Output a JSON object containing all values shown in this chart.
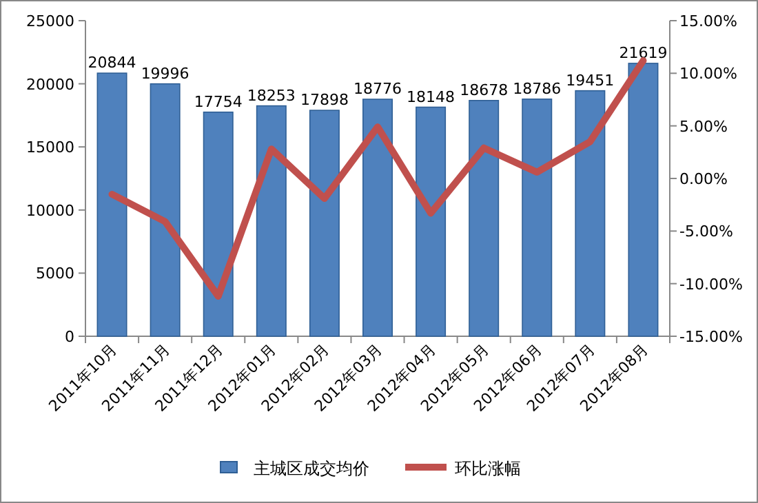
{
  "chart_data": {
    "type": "bar",
    "categories": [
      "2011年10月",
      "2011年11月",
      "2011年12月",
      "2012年01月",
      "2012年02月",
      "2012年03月",
      "2012年04月",
      "2012年05月",
      "2012年06月",
      "2012年07月",
      "2012年08月"
    ],
    "series": [
      {
        "name": "主城区成交均价",
        "color": "#4f81bd",
        "values": [
          20844,
          19996,
          17754,
          18253,
          17898,
          18776,
          18148,
          18678,
          18786,
          19451,
          21619
        ],
        "value_labels": [
          "20844",
          "19996",
          "17754",
          "18253",
          "17898",
          "18776",
          "18148",
          "18678",
          "18786",
          "19451",
          "21619"
        ]
      },
      {
        "name": "环比涨幅",
        "type": "line",
        "axis": "y2",
        "color": "#c0504d",
        "values": [
          -1.5,
          -4.1,
          -11.2,
          2.8,
          -1.9,
          4.9,
          -3.3,
          2.9,
          0.6,
          3.5,
          11.2
        ]
      }
    ],
    "ylim": [
      0,
      25000
    ],
    "yticks": [
      0,
      5000,
      10000,
      15000,
      20000,
      25000
    ],
    "y2lim": [
      -15,
      15
    ],
    "y2ticks": [
      {
        "value": -15,
        "label": "-15.00%"
      },
      {
        "value": -10,
        "label": "-10.00%"
      },
      {
        "value": -5,
        "label": "-5.00%"
      },
      {
        "value": 0,
        "label": "0.00%"
      },
      {
        "value": 5,
        "label": "5.00%"
      },
      {
        "value": 10,
        "label": "10.00%"
      },
      {
        "value": 15,
        "label": "15.00%"
      }
    ],
    "grid": false,
    "legend": "bottom",
    "marker": "none",
    "line_style": "solid"
  }
}
